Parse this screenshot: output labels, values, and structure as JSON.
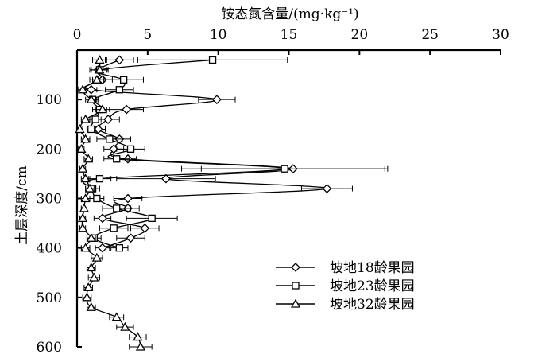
{
  "chart_data": {
    "type": "line",
    "title": "",
    "xlabel": "铵态氮含量/(mg·kg⁻¹)",
    "ylabel": "土层深度/cm",
    "x_axis_position": "top",
    "y_axis_inverted": true,
    "xlim": [
      0,
      30
    ],
    "ylim": [
      0,
      600
    ],
    "x_ticks": [
      0,
      5,
      10,
      15,
      20,
      25,
      30
    ],
    "y_ticks": [
      100,
      200,
      300,
      400,
      500,
      600
    ],
    "grid": false,
    "legend_position": "lower-right",
    "series": [
      {
        "name": "坡地18龄果园",
        "marker": "diamond",
        "points": [
          {
            "x": 3.0,
            "y": 20,
            "err": 1.0
          },
          {
            "x": 1.5,
            "y": 40,
            "err": 0.6
          },
          {
            "x": 1.8,
            "y": 60,
            "err": 0.7
          },
          {
            "x": 1.0,
            "y": 80,
            "err": 0.4
          },
          {
            "x": 9.9,
            "y": 100,
            "err": 1.3
          },
          {
            "x": 3.5,
            "y": 120,
            "err": 1.2
          },
          {
            "x": 2.2,
            "y": 140,
            "err": 0.8
          },
          {
            "x": 1.5,
            "y": 160,
            "err": 0.5
          },
          {
            "x": 3.0,
            "y": 180,
            "err": 0.8
          },
          {
            "x": 2.6,
            "y": 200,
            "err": 0.7
          },
          {
            "x": 3.6,
            "y": 220,
            "err": 0.6
          },
          {
            "x": 15.3,
            "y": 240,
            "err": 6.5
          },
          {
            "x": 6.3,
            "y": 260,
            "err": 3.5
          },
          {
            "x": 17.7,
            "y": 280,
            "err": 1.8
          },
          {
            "x": 3.6,
            "y": 300,
            "err": 1.0
          },
          {
            "x": 3.6,
            "y": 320,
            "err": 0.8
          },
          {
            "x": 1.8,
            "y": 340,
            "err": 0.6
          },
          {
            "x": 4.8,
            "y": 360,
            "err": 1.0
          },
          {
            "x": 3.8,
            "y": 380,
            "err": 1.0
          },
          {
            "x": 1.8,
            "y": 400,
            "err": 0.5
          }
        ]
      },
      {
        "name": "坡地23龄果园",
        "marker": "square",
        "points": [
          {
            "x": 9.6,
            "y": 20,
            "err": 5.3
          },
          {
            "x": 1.6,
            "y": 40,
            "err": 0.6
          },
          {
            "x": 3.3,
            "y": 60,
            "err": 1.4
          },
          {
            "x": 3.0,
            "y": 80,
            "err": 1.0
          },
          {
            "x": 1.1,
            "y": 100,
            "err": 0.4
          },
          {
            "x": 1.6,
            "y": 120,
            "err": 0.5
          },
          {
            "x": 1.3,
            "y": 140,
            "err": 0.4
          },
          {
            "x": 1.0,
            "y": 160,
            "err": 0.3
          },
          {
            "x": 2.3,
            "y": 180,
            "err": 0.9
          },
          {
            "x": 3.8,
            "y": 200,
            "err": 1.0
          },
          {
            "x": 2.8,
            "y": 220,
            "err": 0.9
          },
          {
            "x": 14.7,
            "y": 240,
            "err": 7.3
          },
          {
            "x": 1.6,
            "y": 260,
            "err": 0.8
          },
          {
            "x": 1.1,
            "y": 280,
            "err": 0.5
          },
          {
            "x": 1.4,
            "y": 300,
            "err": 0.5
          },
          {
            "x": 2.8,
            "y": 320,
            "err": 1.0
          },
          {
            "x": 5.3,
            "y": 340,
            "err": 1.8
          },
          {
            "x": 2.6,
            "y": 360,
            "err": 1.0
          },
          {
            "x": 1.2,
            "y": 380,
            "err": 0.5
          },
          {
            "x": 3.0,
            "y": 400,
            "err": 0.6
          }
        ]
      },
      {
        "name": "坡地32龄果园",
        "marker": "triangle",
        "points": [
          {
            "x": 1.6,
            "y": 20,
            "err": 0.5
          },
          {
            "x": 1.6,
            "y": 40,
            "err": 0.6
          },
          {
            "x": 1.4,
            "y": 60,
            "err": 0.5
          },
          {
            "x": 0.4,
            "y": 80,
            "err": 0.3
          },
          {
            "x": 1.0,
            "y": 100,
            "err": 0.4
          },
          {
            "x": 1.8,
            "y": 120,
            "err": 0.5
          },
          {
            "x": 0.6,
            "y": 140,
            "err": 0.3
          },
          {
            "x": 0.2,
            "y": 160,
            "err": 0.2
          },
          {
            "x": 0.6,
            "y": 180,
            "err": 0.3
          },
          {
            "x": 0.3,
            "y": 200,
            "err": 0.2
          },
          {
            "x": 0.8,
            "y": 220,
            "err": 0.3
          },
          {
            "x": 0.4,
            "y": 240,
            "err": 0.2
          },
          {
            "x": 0.6,
            "y": 260,
            "err": 0.3
          },
          {
            "x": 0.9,
            "y": 280,
            "err": 0.3
          },
          {
            "x": 0.6,
            "y": 300,
            "err": 0.3
          },
          {
            "x": 0.5,
            "y": 320,
            "err": 0.2
          },
          {
            "x": 0.4,
            "y": 340,
            "err": 0.2
          },
          {
            "x": 0.4,
            "y": 360,
            "err": 0.2
          },
          {
            "x": 1.0,
            "y": 380,
            "err": 0.3
          },
          {
            "x": 0.6,
            "y": 400,
            "err": 0.3
          },
          {
            "x": 1.4,
            "y": 420,
            "err": 0.4
          },
          {
            "x": 1.0,
            "y": 440,
            "err": 0.3
          },
          {
            "x": 1.2,
            "y": 460,
            "err": 0.4
          },
          {
            "x": 0.8,
            "y": 480,
            "err": 0.3
          },
          {
            "x": 0.7,
            "y": 500,
            "err": 0.3
          },
          {
            "x": 1.0,
            "y": 520,
            "err": 0.3
          },
          {
            "x": 2.8,
            "y": 540,
            "err": 0.5
          },
          {
            "x": 3.4,
            "y": 560,
            "err": 0.6
          },
          {
            "x": 4.3,
            "y": 580,
            "err": 0.6
          },
          {
            "x": 4.5,
            "y": 600,
            "err": 0.8
          }
        ]
      }
    ]
  }
}
